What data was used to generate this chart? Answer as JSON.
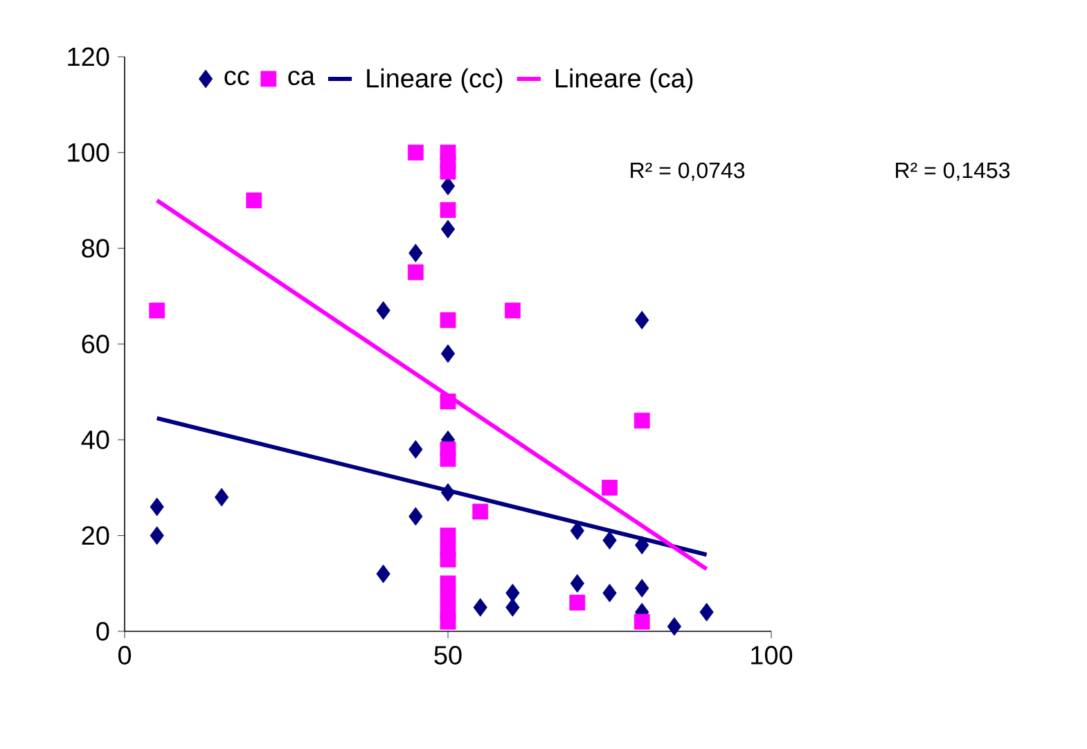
{
  "chart_data": {
    "type": "scatter",
    "series": [
      {
        "name": "cc",
        "marker": "diamond",
        "color": "#000080",
        "x": [
          5,
          5,
          15,
          40,
          40,
          45,
          45,
          45,
          50,
          50,
          50,
          50,
          50,
          55,
          60,
          60,
          70,
          70,
          75,
          75,
          80,
          80,
          80,
          80,
          85,
          90
        ],
        "values": [
          26,
          20,
          28,
          67,
          12,
          79,
          38,
          24,
          93,
          84,
          58,
          40,
          29,
          5,
          8,
          5,
          21,
          10,
          19,
          8,
          65,
          18,
          9,
          4,
          1,
          4
        ]
      },
      {
        "name": "ca",
        "marker": "square",
        "color": "#ff00ff",
        "x": [
          5,
          20,
          45,
          45,
          50,
          50,
          50,
          50,
          50,
          50,
          50,
          50,
          50,
          50,
          50,
          50,
          50,
          50,
          50,
          55,
          60,
          70,
          75,
          80,
          80
        ],
        "values": [
          67,
          90,
          100,
          75,
          100,
          98,
          96,
          88,
          65,
          48,
          38,
          36,
          20,
          17,
          15,
          10,
          7,
          4,
          2,
          25,
          67,
          6,
          30,
          44,
          2
        ]
      },
      {
        "name": "Lineare (cc)",
        "type": "line",
        "marker": "none",
        "line_style": "solid",
        "color": "#000080",
        "x": [
          5,
          90
        ],
        "values": [
          44.5,
          16
        ]
      },
      {
        "name": "Lineare (ca)",
        "type": "line",
        "marker": "none",
        "line_style": "solid",
        "color": "#ff00ff",
        "x": [
          5,
          90
        ],
        "values": [
          90,
          13
        ]
      }
    ],
    "xlim": [
      0,
      100
    ],
    "xticks": [
      0,
      50,
      100
    ],
    "ylim": [
      0,
      120
    ],
    "yticks": [
      0,
      20,
      40,
      60,
      80,
      100,
      120
    ],
    "grid": false,
    "legend": "top",
    "annotations": [
      "R² = 0,0743",
      "R² = 0,1453"
    ]
  }
}
